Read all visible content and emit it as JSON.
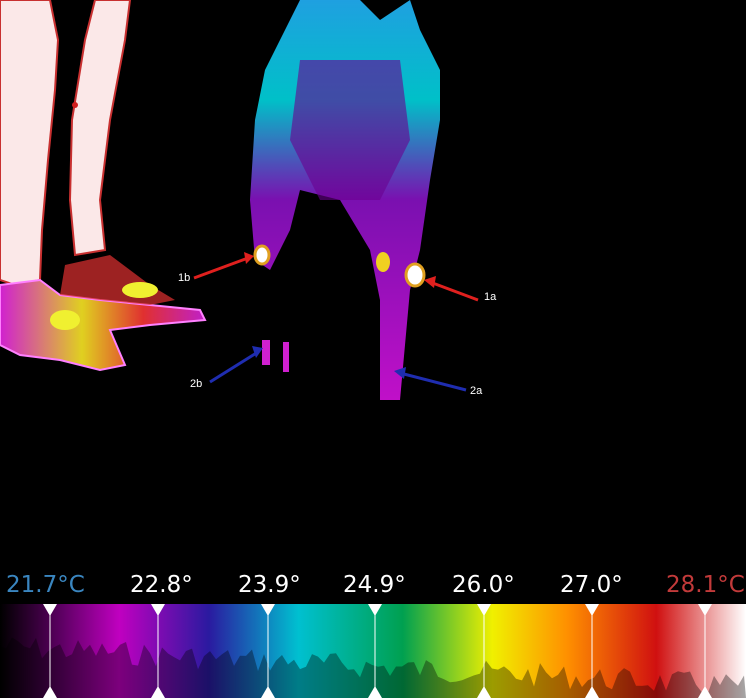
{
  "annotations": [
    {
      "id": "1a",
      "label": "1a",
      "arrow_color": "#e0201e"
    },
    {
      "id": "1b",
      "label": "1b",
      "arrow_color": "#e0201e"
    },
    {
      "id": "2a",
      "label": "2a",
      "arrow_color": "#1f2db0"
    },
    {
      "id": "2b",
      "label": "2b",
      "arrow_color": "#1f2db0"
    }
  ],
  "scale": {
    "ticks": [
      {
        "label": "21.7°C",
        "color": "#3a86c0"
      },
      {
        "label": "22.8°",
        "color": "#ffffff"
      },
      {
        "label": "23.9°",
        "color": "#ffffff"
      },
      {
        "label": "24.9°",
        "color": "#ffffff"
      },
      {
        "label": "26.0°",
        "color": "#ffffff"
      },
      {
        "label": "27.0°",
        "color": "#ffffff"
      },
      {
        "label": "28.1°C",
        "color": "#c23a3a"
      }
    ],
    "palette": [
      "#000000",
      "#5a0060",
      "#c000c0",
      "#2a1aa0",
      "#00c0d0",
      "#00a050",
      "#f0f000",
      "#ff9000",
      "#d01010",
      "#ffffff"
    ]
  },
  "colors": {
    "background": "#000000",
    "marker": "#ffffff"
  }
}
